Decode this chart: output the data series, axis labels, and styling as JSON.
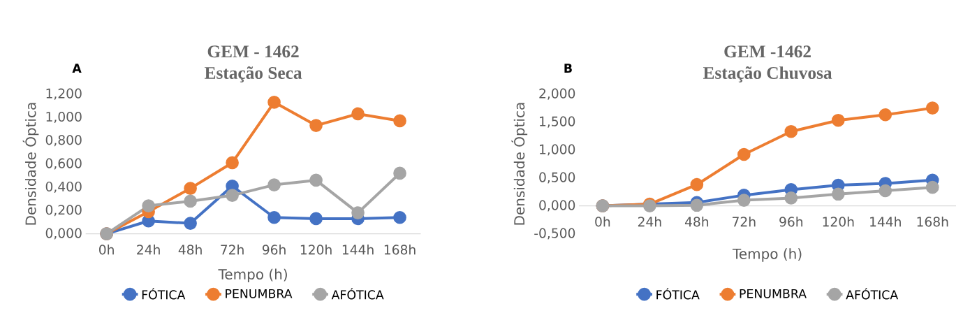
{
  "chart_data": [
    {
      "type": "line",
      "title": "GEM - 1462",
      "subtitle": "Estação Seca",
      "ylabel": "Densidade Óptica",
      "xlabel": "Tempo (h)",
      "annotations": [
        "A"
      ],
      "categories": [
        "0h",
        "24h",
        "48h",
        "72h",
        "96h",
        "120h",
        "144h",
        "168h"
      ],
      "series": [
        {
          "name": "FÓTICA",
          "color": "#4472c4",
          "values": [
            0,
            0.11,
            0.09,
            0.41,
            0.14,
            0.13,
            0.13,
            0.14
          ]
        },
        {
          "name": "PENUMBRA",
          "color": "#ed7d31",
          "values": [
            0,
            0.19,
            0.39,
            0.61,
            1.13,
            0.93,
            1.03,
            0.97
          ]
        },
        {
          "name": "AFÓTICA",
          "color": "#a5a5a5",
          "values": [
            0,
            0.24,
            0.28,
            0.33,
            0.42,
            0.46,
            0.18,
            0.52
          ]
        }
      ],
      "ylim": [
        0,
        1.2
      ],
      "yticks": [
        {
          "value": 0,
          "label": "0,000"
        },
        {
          "value": 0.2,
          "label": "0,200"
        },
        {
          "value": 0.4,
          "label": "0,400"
        },
        {
          "value": 0.6,
          "label": "0,600"
        },
        {
          "value": 0.8,
          "label": "0,800"
        },
        {
          "value": 1.0,
          "label": "1,000"
        },
        {
          "value": 1.2,
          "label": "1,200"
        }
      ],
      "legend": "bottom",
      "marker": "circle",
      "grid": false
    },
    {
      "type": "line",
      "title": "GEM -1462",
      "subtitle": "Estação Chuvosa",
      "ylabel": "Densidade Óptica",
      "xlabel": "Tempo (h)",
      "annotations": [
        "B"
      ],
      "categories": [
        "0h",
        "24h",
        "48h",
        "72h",
        "96h",
        "120h",
        "144h",
        "168h"
      ],
      "series": [
        {
          "name": "FÓTICA",
          "color": "#4472c4",
          "values": [
            0,
            null,
            0.06,
            0.19,
            0.29,
            0.37,
            0.4,
            0.46
          ]
        },
        {
          "name": "PENUMBRA",
          "color": "#ed7d31",
          "values": [
            0,
            0.03,
            0.38,
            0.92,
            1.33,
            1.53,
            1.63,
            1.75
          ]
        },
        {
          "name": "AFÓTICA",
          "color": "#a5a5a5",
          "values": [
            0,
            0,
            0.01,
            0.1,
            0.14,
            0.21,
            0.27,
            0.33
          ]
        }
      ],
      "ylim": [
        -0.5,
        2.0
      ],
      "yticks": [
        {
          "value": -0.5,
          "label": "-0,500"
        },
        {
          "value": 0,
          "label": "0,000"
        },
        {
          "value": 0.5,
          "label": "0,500"
        },
        {
          "value": 1.0,
          "label": "1,000"
        },
        {
          "value": 1.5,
          "label": "1,500"
        },
        {
          "value": 2.0,
          "label": "2,000"
        }
      ],
      "legend": "bottom",
      "marker": "circle",
      "grid": false
    }
  ]
}
